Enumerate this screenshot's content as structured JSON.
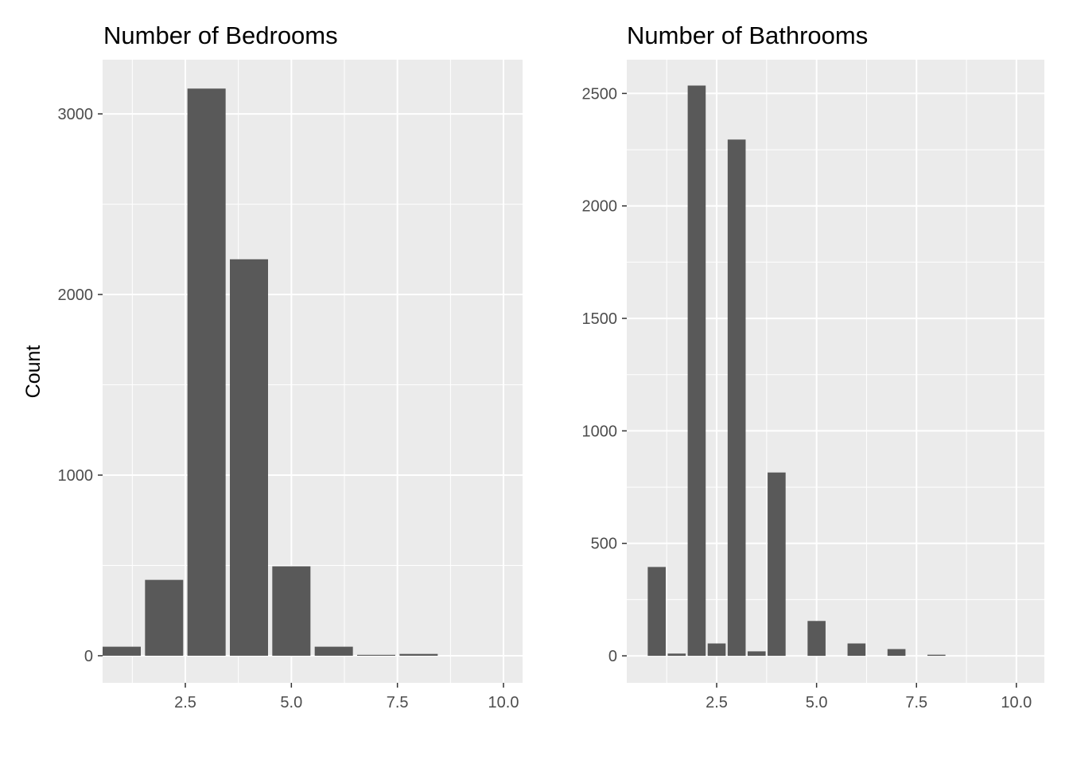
{
  "chart_data": [
    {
      "type": "bar",
      "title": "Number of Bedrooms",
      "xlabel": "",
      "ylabel": "Count",
      "x": [
        1,
        2,
        3,
        4,
        5,
        6,
        7,
        8,
        9,
        10
      ],
      "values": [
        50,
        420,
        3140,
        2195,
        495,
        50,
        5,
        10,
        0,
        0
      ],
      "bar_width": 0.9,
      "xlim": [
        0.55,
        10.45
      ],
      "ylim": [
        -150,
        3300
      ],
      "x_ticks": [
        2.5,
        5.0,
        7.5,
        10.0
      ],
      "x_tick_labels": [
        "2.5",
        "5.0",
        "7.5",
        "10.0"
      ],
      "y_ticks": [
        0,
        1000,
        2000,
        3000
      ],
      "y_tick_labels": [
        "0",
        "1000",
        "2000",
        "3000"
      ],
      "grid": true,
      "colors": {
        "bar": "#595959",
        "panel": "#ebebeb",
        "grid": "#ffffff"
      }
    },
    {
      "type": "bar",
      "title": "Number of Bathrooms",
      "xlabel": "",
      "ylabel": "",
      "x": [
        1,
        1.5,
        2,
        2.5,
        3,
        3.5,
        4,
        4.5,
        5,
        5.5,
        6,
        6.5,
        7,
        7.5,
        8,
        8.5,
        9,
        9.5,
        10
      ],
      "values": [
        395,
        10,
        2535,
        55,
        2295,
        20,
        815,
        0,
        155,
        0,
        55,
        0,
        30,
        0,
        5,
        0,
        0,
        0,
        0
      ],
      "bar_width": 0.45,
      "xlim": [
        0.25,
        10.7
      ],
      "ylim": [
        -120,
        2650
      ],
      "x_ticks": [
        2.5,
        5.0,
        7.5,
        10.0
      ],
      "x_tick_labels": [
        "2.5",
        "5.0",
        "7.5",
        "10.0"
      ],
      "y_ticks": [
        0,
        500,
        1000,
        1500,
        2000,
        2500
      ],
      "y_tick_labels": [
        "0",
        "500",
        "1000",
        "1500",
        "2000",
        "2500"
      ],
      "grid": true,
      "colors": {
        "bar": "#595959",
        "panel": "#ebebeb",
        "grid": "#ffffff"
      }
    }
  ]
}
